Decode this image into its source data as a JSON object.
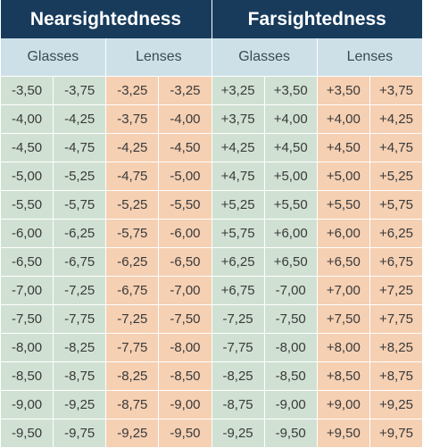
{
  "table": {
    "headers": [
      "Nearsightedness",
      "Farsightedness"
    ],
    "subheaders": [
      "Glasses",
      "Lenses",
      "Glasses",
      "Lenses"
    ],
    "rows": [
      [
        "-3,50",
        "-3,75",
        "-3,25",
        "-3,25",
        "+3,25",
        "+3,50",
        "+3,50",
        "+3,75"
      ],
      [
        "-4,00",
        "-4,25",
        "-3,75",
        "-4,00",
        "+3,75",
        "+4,00",
        "+4,00",
        "+4,25"
      ],
      [
        "-4,50",
        "-4,75",
        "-4,25",
        "-4,50",
        "+4,25",
        "+4,50",
        "+4,50",
        "+4,75"
      ],
      [
        "-5,00",
        "-5,25",
        "-4,75",
        "-5,00",
        "+4,75",
        "+5,00",
        "+5,00",
        "+5,25"
      ],
      [
        "-5,50",
        "-5,75",
        "-5,25",
        "-5,50",
        "+5,25",
        "+5,50",
        "+5,50",
        "+5,75"
      ],
      [
        "-6,00",
        "-6,25",
        "-5,75",
        "-6,00",
        "+5,75",
        "+6,00",
        "+6,00",
        "+6,25"
      ],
      [
        "-6,50",
        "-6,75",
        "-6,25",
        "-6,50",
        "+6,25",
        "+6,50",
        "+6,50",
        "+6,75"
      ],
      [
        "-7,00",
        "-7,25",
        "-6,75",
        "-7,00",
        "+6,75",
        "-7,00",
        "+7,00",
        "+7,25"
      ],
      [
        "-7,50",
        "-7,75",
        "-7,25",
        "-7,50",
        "-7,25",
        "-7,50",
        "+7,50",
        "+7,75"
      ],
      [
        "-8,00",
        "-8,25",
        "-7,75",
        "-8,00",
        "-7,75",
        "-8,00",
        "+8,00",
        "+8,25"
      ],
      [
        "-8,50",
        "-8,75",
        "-8,25",
        "-8,50",
        "-8,25",
        "-8,50",
        "+8,50",
        "+8,75"
      ],
      [
        "-9,00",
        "-9,25",
        "-8,75",
        "-9,00",
        "-8,75",
        "-9,00",
        "+9,00",
        "+9,25"
      ],
      [
        "-9,50",
        "-9,75",
        "-9,25",
        "-9,50",
        "-9,25",
        "-9,50",
        "+9,50",
        "+9,75"
      ]
    ]
  }
}
